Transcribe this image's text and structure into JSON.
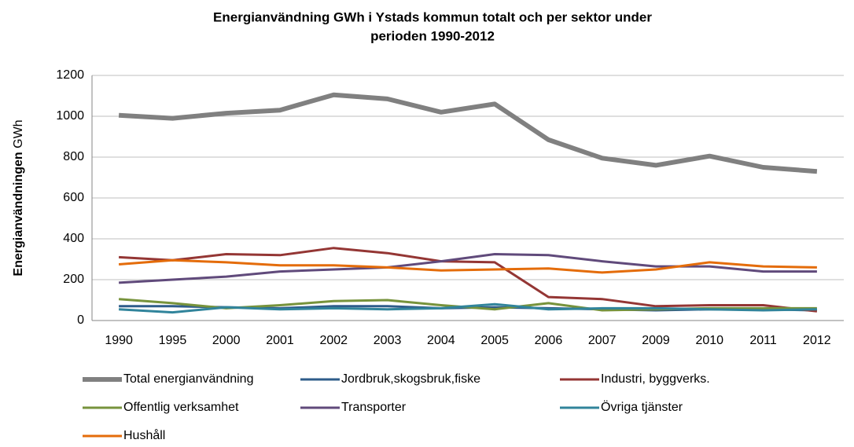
{
  "chart_data": {
    "type": "line",
    "title": [
      "Energianvändning GWh i Ystads kommun totalt och per sektor under",
      "perioden 1990-2012"
    ],
    "y_label": "Energianvändningen",
    "y_unit": "GWh",
    "categories": [
      "1990",
      "1995",
      "2000",
      "2001",
      "2002",
      "2003",
      "2004",
      "2005",
      "2006",
      "2007",
      "2009",
      "2010",
      "2011",
      "2012"
    ],
    "series": [
      {
        "name": "Total energianvändning",
        "color": "#808080",
        "values": [
          1005,
          990,
          1015,
          1030,
          1105,
          1085,
          1020,
          1060,
          885,
          795,
          760,
          805,
          750,
          730
        ]
      },
      {
        "name": "Jordbruk,skogsbruk,fiske",
        "color": "#2e5c8a",
        "values": [
          70,
          70,
          65,
          60,
          70,
          70,
          60,
          65,
          60,
          55,
          50,
          55,
          55,
          50
        ]
      },
      {
        "name": "Industri, byggverks.",
        "color": "#943634",
        "values": [
          310,
          295,
          325,
          320,
          355,
          330,
          290,
          285,
          115,
          105,
          70,
          75,
          75,
          45
        ]
      },
      {
        "name": "Offentlig verksamhet",
        "color": "#77933c",
        "values": [
          105,
          85,
          60,
          75,
          95,
          100,
          75,
          55,
          85,
          50,
          55,
          60,
          60,
          60
        ]
      },
      {
        "name": "Transporter",
        "color": "#604a7b",
        "values": [
          185,
          200,
          215,
          240,
          250,
          260,
          290,
          325,
          320,
          290,
          265,
          265,
          240,
          240
        ]
      },
      {
        "name": "Övriga tjänster",
        "color": "#31849b",
        "values": [
          55,
          40,
          65,
          55,
          60,
          55,
          60,
          80,
          55,
          60,
          60,
          55,
          50,
          55
        ]
      },
      {
        "name": "Hushåll",
        "color": "#e46c0a",
        "values": [
          275,
          295,
          285,
          270,
          270,
          260,
          245,
          250,
          255,
          235,
          250,
          285,
          265,
          260
        ]
      }
    ],
    "ylim": [
      0,
      1200
    ],
    "yticks": [
      0,
      200,
      400,
      600,
      800,
      1000,
      1200
    ],
    "grid": true
  }
}
